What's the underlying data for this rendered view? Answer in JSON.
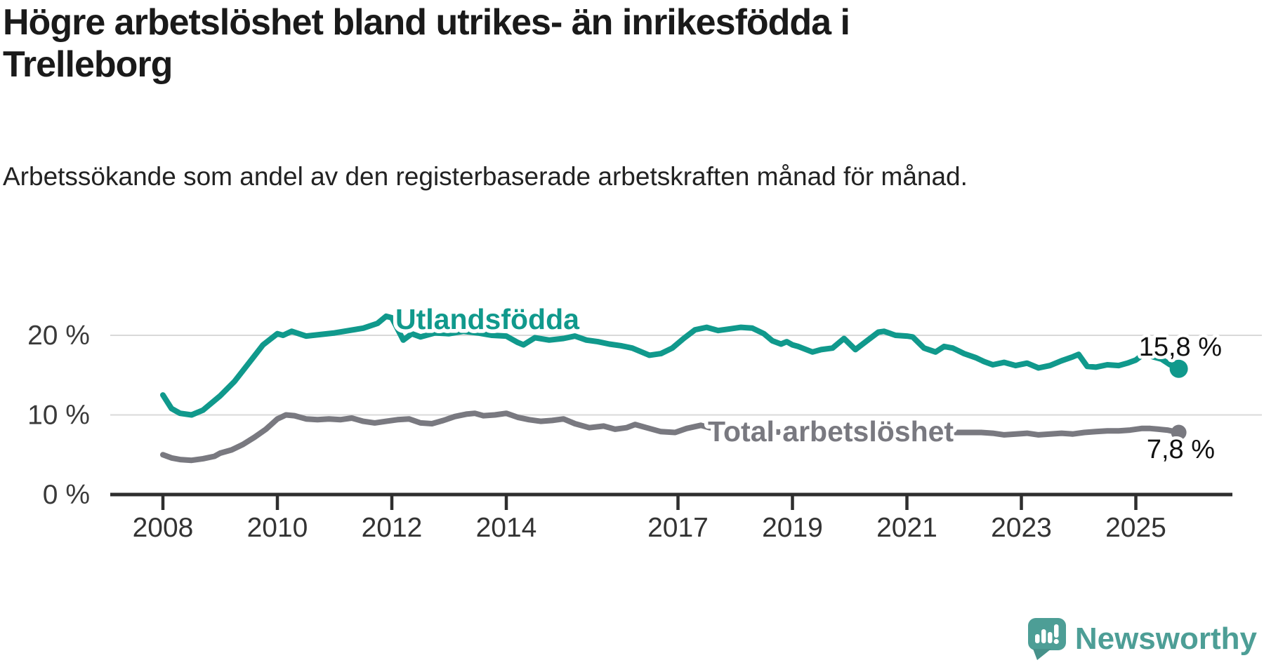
{
  "header": {
    "title": "Högre arbetslöshet bland utrikes- än inrikesfödda i Trelleborg",
    "subtitle": "Arbetssökande som andel av den registerbaserade arbetskraften månad för månad."
  },
  "footer": {
    "brand": "Newsworthy",
    "brand_color": "#4d9e96",
    "logo_icon": "speech-bubble-bar-chart"
  },
  "chart_data": {
    "type": "line",
    "title": "Högre arbetslöshet bland utrikes- än inrikesfödda i Trelleborg",
    "xlabel": "",
    "ylabel": "",
    "unit": "%",
    "grid": true,
    "legend_position": "inline-on-line",
    "x_axis": {
      "ticks": [
        2008,
        2010,
        2012,
        2014,
        2017,
        2019,
        2021,
        2023,
        2025
      ],
      "labels": [
        "2008",
        "2010",
        "2012",
        "2014",
        "2017",
        "2019",
        "2021",
        "2023",
        "2025"
      ],
      "range": [
        2007.6,
        2026.3
      ]
    },
    "y_axis": {
      "ticks": [
        0,
        10,
        20
      ],
      "labels": [
        "0 %",
        "10 %",
        "20 %"
      ],
      "range": [
        0,
        24
      ]
    },
    "series": [
      {
        "name": "Utlandsfödda",
        "color": "#10998C",
        "end_label": "15,8 %",
        "end_value": 15.8,
        "points": [
          [
            2008.0,
            12.5
          ],
          [
            2008.15,
            10.8
          ],
          [
            2008.3,
            10.2
          ],
          [
            2008.5,
            10.0
          ],
          [
            2008.7,
            10.6
          ],
          [
            2009.0,
            12.4
          ],
          [
            2009.25,
            14.2
          ],
          [
            2009.5,
            16.5
          ],
          [
            2009.75,
            18.8
          ],
          [
            2010.0,
            20.2
          ],
          [
            2010.1,
            20.0
          ],
          [
            2010.25,
            20.5
          ],
          [
            2010.5,
            19.9
          ],
          [
            2010.75,
            20.1
          ],
          [
            2011.0,
            20.3
          ],
          [
            2011.25,
            20.6
          ],
          [
            2011.5,
            20.9
          ],
          [
            2011.75,
            21.5
          ],
          [
            2011.9,
            22.4
          ],
          [
            2012.0,
            22.2
          ],
          [
            2012.2,
            19.4
          ],
          [
            2012.35,
            20.2
          ],
          [
            2012.5,
            19.8
          ],
          [
            2012.75,
            20.3
          ],
          [
            2013.0,
            20.2
          ],
          [
            2013.25,
            20.5
          ],
          [
            2013.5,
            20.3
          ],
          [
            2013.75,
            20.0
          ],
          [
            2014.0,
            19.9
          ],
          [
            2014.2,
            19.1
          ],
          [
            2014.3,
            18.8
          ],
          [
            2014.5,
            19.7
          ],
          [
            2014.75,
            19.4
          ],
          [
            2015.0,
            19.6
          ],
          [
            2015.2,
            19.9
          ],
          [
            2015.4,
            19.4
          ],
          [
            2015.6,
            19.2
          ],
          [
            2015.8,
            18.9
          ],
          [
            2016.0,
            18.7
          ],
          [
            2016.2,
            18.4
          ],
          [
            2016.5,
            17.5
          ],
          [
            2016.7,
            17.7
          ],
          [
            2016.9,
            18.4
          ],
          [
            2017.1,
            19.6
          ],
          [
            2017.3,
            20.7
          ],
          [
            2017.5,
            21.0
          ],
          [
            2017.7,
            20.6
          ],
          [
            2017.9,
            20.8
          ],
          [
            2018.1,
            21.0
          ],
          [
            2018.3,
            20.9
          ],
          [
            2018.5,
            20.2
          ],
          [
            2018.65,
            19.3
          ],
          [
            2018.8,
            18.9
          ],
          [
            2018.9,
            19.2
          ],
          [
            2019.0,
            18.8
          ],
          [
            2019.1,
            18.6
          ],
          [
            2019.35,
            17.9
          ],
          [
            2019.5,
            18.2
          ],
          [
            2019.7,
            18.4
          ],
          [
            2019.9,
            19.6
          ],
          [
            2020.1,
            18.2
          ],
          [
            2020.3,
            19.3
          ],
          [
            2020.5,
            20.4
          ],
          [
            2020.6,
            20.5
          ],
          [
            2020.8,
            20.0
          ],
          [
            2021.0,
            19.9
          ],
          [
            2021.1,
            19.8
          ],
          [
            2021.3,
            18.4
          ],
          [
            2021.5,
            17.9
          ],
          [
            2021.65,
            18.6
          ],
          [
            2021.8,
            18.4
          ],
          [
            2022.0,
            17.7
          ],
          [
            2022.2,
            17.2
          ],
          [
            2022.35,
            16.7
          ],
          [
            2022.5,
            16.3
          ],
          [
            2022.7,
            16.6
          ],
          [
            2022.9,
            16.2
          ],
          [
            2023.1,
            16.5
          ],
          [
            2023.3,
            15.9
          ],
          [
            2023.5,
            16.2
          ],
          [
            2023.7,
            16.8
          ],
          [
            2023.9,
            17.3
          ],
          [
            2024.0,
            17.6
          ],
          [
            2024.15,
            16.1
          ],
          [
            2024.3,
            16.0
          ],
          [
            2024.5,
            16.3
          ],
          [
            2024.7,
            16.2
          ],
          [
            2024.85,
            16.5
          ],
          [
            2025.0,
            16.9
          ],
          [
            2025.15,
            17.7
          ],
          [
            2025.3,
            17.3
          ],
          [
            2025.45,
            17.0
          ],
          [
            2025.6,
            16.3
          ],
          [
            2025.75,
            15.8
          ]
        ]
      },
      {
        "name": "Total arbetslöshet",
        "color": "#797980",
        "end_label": "7,8 %",
        "end_value": 7.8,
        "points": [
          [
            2008.0,
            5.0
          ],
          [
            2008.15,
            4.6
          ],
          [
            2008.3,
            4.4
          ],
          [
            2008.5,
            4.3
          ],
          [
            2008.7,
            4.5
          ],
          [
            2008.9,
            4.8
          ],
          [
            2009.0,
            5.2
          ],
          [
            2009.2,
            5.6
          ],
          [
            2009.4,
            6.3
          ],
          [
            2009.6,
            7.2
          ],
          [
            2009.8,
            8.2
          ],
          [
            2010.0,
            9.5
          ],
          [
            2010.15,
            10.0
          ],
          [
            2010.3,
            9.9
          ],
          [
            2010.5,
            9.5
          ],
          [
            2010.7,
            9.4
          ],
          [
            2010.9,
            9.5
          ],
          [
            2011.1,
            9.4
          ],
          [
            2011.3,
            9.6
          ],
          [
            2011.5,
            9.2
          ],
          [
            2011.7,
            9.0
          ],
          [
            2011.9,
            9.2
          ],
          [
            2012.1,
            9.4
          ],
          [
            2012.3,
            9.5
          ],
          [
            2012.5,
            9.0
          ],
          [
            2012.7,
            8.9
          ],
          [
            2012.9,
            9.3
          ],
          [
            2013.1,
            9.8
          ],
          [
            2013.3,
            10.1
          ],
          [
            2013.45,
            10.2
          ],
          [
            2013.6,
            9.9
          ],
          [
            2013.8,
            10.0
          ],
          [
            2014.0,
            10.2
          ],
          [
            2014.2,
            9.7
          ],
          [
            2014.4,
            9.4
          ],
          [
            2014.6,
            9.2
          ],
          [
            2014.8,
            9.3
          ],
          [
            2015.0,
            9.5
          ],
          [
            2015.2,
            8.9
          ],
          [
            2015.45,
            8.4
          ],
          [
            2015.7,
            8.6
          ],
          [
            2015.9,
            8.2
          ],
          [
            2016.1,
            8.4
          ],
          [
            2016.25,
            8.8
          ],
          [
            2016.45,
            8.4
          ],
          [
            2016.7,
            7.9
          ],
          [
            2016.95,
            7.8
          ],
          [
            2017.15,
            8.3
          ],
          [
            2017.4,
            8.7
          ],
          [
            2017.55,
            8.4
          ],
          [
            2017.8,
            8.2
          ],
          [
            2018.0,
            8.1
          ],
          [
            2018.3,
            8.0
          ],
          [
            2018.6,
            7.9
          ],
          [
            2018.9,
            7.8
          ],
          [
            2019.2,
            7.7
          ],
          [
            2019.5,
            7.7
          ],
          [
            2019.8,
            7.8
          ],
          [
            2020.1,
            7.9
          ],
          [
            2020.4,
            8.0
          ],
          [
            2020.7,
            8.0
          ],
          [
            2021.0,
            7.9
          ],
          [
            2021.3,
            7.8
          ],
          [
            2021.6,
            7.8
          ],
          [
            2021.9,
            7.8
          ],
          [
            2022.1,
            7.8
          ],
          [
            2022.3,
            7.8
          ],
          [
            2022.5,
            7.7
          ],
          [
            2022.7,
            7.5
          ],
          [
            2022.9,
            7.6
          ],
          [
            2023.1,
            7.7
          ],
          [
            2023.3,
            7.5
          ],
          [
            2023.5,
            7.6
          ],
          [
            2023.7,
            7.7
          ],
          [
            2023.9,
            7.6
          ],
          [
            2024.1,
            7.8
          ],
          [
            2024.3,
            7.9
          ],
          [
            2024.5,
            8.0
          ],
          [
            2024.7,
            8.0
          ],
          [
            2024.9,
            8.1
          ],
          [
            2025.1,
            8.3
          ],
          [
            2025.25,
            8.3
          ],
          [
            2025.4,
            8.2
          ],
          [
            2025.55,
            8.1
          ],
          [
            2025.75,
            7.8
          ]
        ]
      }
    ]
  }
}
